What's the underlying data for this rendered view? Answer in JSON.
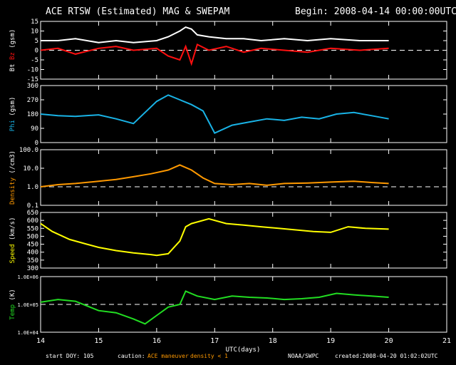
{
  "header": {
    "title": "ACE RTSW (Estimated) MAG & SWEPAM",
    "begin": "Begin: 2008-04-14 00:00:00UTC"
  },
  "footer": {
    "start_doy": "start DOY: 105",
    "caution": "caution:",
    "maneuver": "ACE maneuver",
    "density_note": "density < 1",
    "org": "NOAA/SWPC",
    "created": "created:2008-04-20 01:02:02UTC"
  },
  "colors": {
    "bt": "#ffffff",
    "bz": "#ff1010",
    "phi": "#19b3e6",
    "density": "#ff9900",
    "speed": "#ffff00",
    "temp": "#22dd22",
    "axes": "#ffffff",
    "caution": "#ff9900"
  },
  "chart_data": {
    "type": "line",
    "xlabel": "UTC(days)",
    "x_ticks": [
      "14",
      "15",
      "16",
      "17",
      "18",
      "19",
      "20",
      "21"
    ],
    "xlim": [
      14,
      21
    ],
    "panels": [
      {
        "id": "mag",
        "ylabel_parts": [
          "Bt",
          "Bz",
          "(gsm)"
        ],
        "ylim": [
          -15,
          15
        ],
        "scale": "linear",
        "y_ticks": [
          "15",
          "10",
          "5",
          "0",
          "-5",
          "-10",
          "-15"
        ],
        "y_tick_values": [
          15,
          10,
          5,
          0,
          -5,
          -10,
          -15
        ],
        "reference_line": 0,
        "series": [
          {
            "name": "Bt",
            "color_key": "bt",
            "x": [
              14.0,
              14.3,
              14.6,
              15.0,
              15.3,
              15.6,
              16.0,
              16.2,
              16.4,
              16.5,
              16.6,
              16.7,
              16.9,
              17.2,
              17.5,
              17.8,
              18.2,
              18.6,
              19.0,
              19.5,
              20.0
            ],
            "values": [
              5,
              5,
              6,
              4,
              5,
              4,
              5,
              7,
              10,
              12,
              11,
              8,
              7,
              6,
              6,
              5,
              6,
              5,
              6,
              5,
              5
            ]
          },
          {
            "name": "Bz",
            "color_key": "bz",
            "x": [
              14.0,
              14.3,
              14.6,
              15.0,
              15.3,
              15.6,
              16.0,
              16.2,
              16.4,
              16.5,
              16.6,
              16.7,
              16.9,
              17.2,
              17.5,
              17.8,
              18.2,
              18.6,
              19.0,
              19.5,
              20.0
            ],
            "values": [
              0,
              1,
              -2,
              1,
              2,
              0,
              1,
              -3,
              -5,
              2,
              -7,
              3,
              0,
              2,
              -1,
              1,
              0,
              -1,
              1,
              0,
              1
            ]
          }
        ]
      },
      {
        "id": "phi",
        "ylabel_parts": [
          "Phi",
          "(gsm)"
        ],
        "ylim": [
          0,
          360
        ],
        "scale": "linear",
        "y_ticks": [
          "360",
          "270",
          "180",
          "90",
          "0"
        ],
        "y_tick_values": [
          360,
          270,
          180,
          90,
          0
        ],
        "series": [
          {
            "name": "Phi",
            "color_key": "phi",
            "x": [
              14.0,
              14.3,
              14.6,
              15.0,
              15.3,
              15.6,
              16.0,
              16.2,
              16.4,
              16.6,
              16.8,
              17.0,
              17.3,
              17.6,
              17.9,
              18.2,
              18.5,
              18.8,
              19.1,
              19.4,
              19.7,
              20.0
            ],
            "values": [
              180,
              170,
              165,
              175,
              150,
              120,
              260,
              300,
              270,
              240,
              200,
              60,
              110,
              130,
              150,
              140,
              160,
              150,
              180,
              190,
              170,
              150
            ]
          }
        ]
      },
      {
        "id": "density",
        "ylabel_parts": [
          "Density",
          "(/cm3)"
        ],
        "ylim": [
          0.1,
          100
        ],
        "scale": "log",
        "y_ticks": [
          "100.0",
          "10.0",
          "1.0",
          "0.1"
        ],
        "y_tick_values": [
          100,
          10,
          1,
          0.1
        ],
        "reference_line": 1,
        "series": [
          {
            "name": "Density",
            "color_key": "density",
            "x": [
              14.0,
              14.3,
              14.6,
              15.0,
              15.3,
              15.6,
              15.9,
              16.2,
              16.4,
              16.6,
              16.8,
              17.0,
              17.3,
              17.6,
              17.9,
              18.2,
              18.6,
              19.0,
              19.4,
              19.7,
              20.0
            ],
            "values": [
              1.0,
              1.3,
              1.5,
              2.0,
              2.5,
              3.5,
              5.0,
              8.0,
              15.0,
              8.0,
              3.0,
              1.5,
              1.3,
              1.5,
              1.2,
              1.5,
              1.6,
              1.8,
              2.0,
              1.7,
              1.5
            ]
          }
        ]
      },
      {
        "id": "speed",
        "ylabel_parts": [
          "Speed",
          "(km/s)"
        ],
        "ylim": [
          300,
          650
        ],
        "scale": "linear",
        "y_ticks": [
          "650",
          "600",
          "550",
          "500",
          "450",
          "400",
          "350",
          "300"
        ],
        "y_tick_values": [
          650,
          600,
          550,
          500,
          450,
          400,
          350,
          300
        ],
        "series": [
          {
            "name": "Speed",
            "color_key": "speed",
            "x": [
              14.0,
              14.2,
              14.5,
              14.8,
              15.0,
              15.3,
              15.6,
              15.9,
              16.0,
              16.2,
              16.4,
              16.5,
              16.6,
              16.7,
              16.9,
              17.2,
              17.5,
              17.8,
              18.1,
              18.4,
              18.7,
              19.0,
              19.3,
              19.6,
              20.0
            ],
            "values": [
              580,
              530,
              480,
              450,
              430,
              410,
              395,
              385,
              380,
              390,
              470,
              560,
              580,
              590,
              610,
              580,
              570,
              560,
              550,
              540,
              530,
              525,
              560,
              550,
              545
            ]
          }
        ]
      },
      {
        "id": "temp",
        "ylabel_parts": [
          "Temp",
          "(K)"
        ],
        "ylim": [
          10000,
          1000000
        ],
        "scale": "log",
        "y_ticks": [
          "1.0E+06",
          "1.0E+05",
          "1.0E+04"
        ],
        "y_tick_values": [
          1000000,
          100000,
          10000
        ],
        "reference_line": 100000,
        "series": [
          {
            "name": "Temp",
            "color_key": "temp",
            "x": [
              14.0,
              14.3,
              14.6,
              15.0,
              15.3,
              15.6,
              15.8,
              16.0,
              16.2,
              16.4,
              16.5,
              16.7,
              17.0,
              17.3,
              17.6,
              17.9,
              18.2,
              18.5,
              18.8,
              19.1,
              19.4,
              19.7,
              20.0
            ],
            "values": [
              120000,
              150000,
              130000,
              60000,
              50000,
              30000,
              20000,
              40000,
              80000,
              100000,
              300000,
              200000,
              150000,
              200000,
              180000,
              170000,
              150000,
              160000,
              180000,
              250000,
              220000,
              200000,
              180000
            ]
          }
        ]
      }
    ]
  }
}
